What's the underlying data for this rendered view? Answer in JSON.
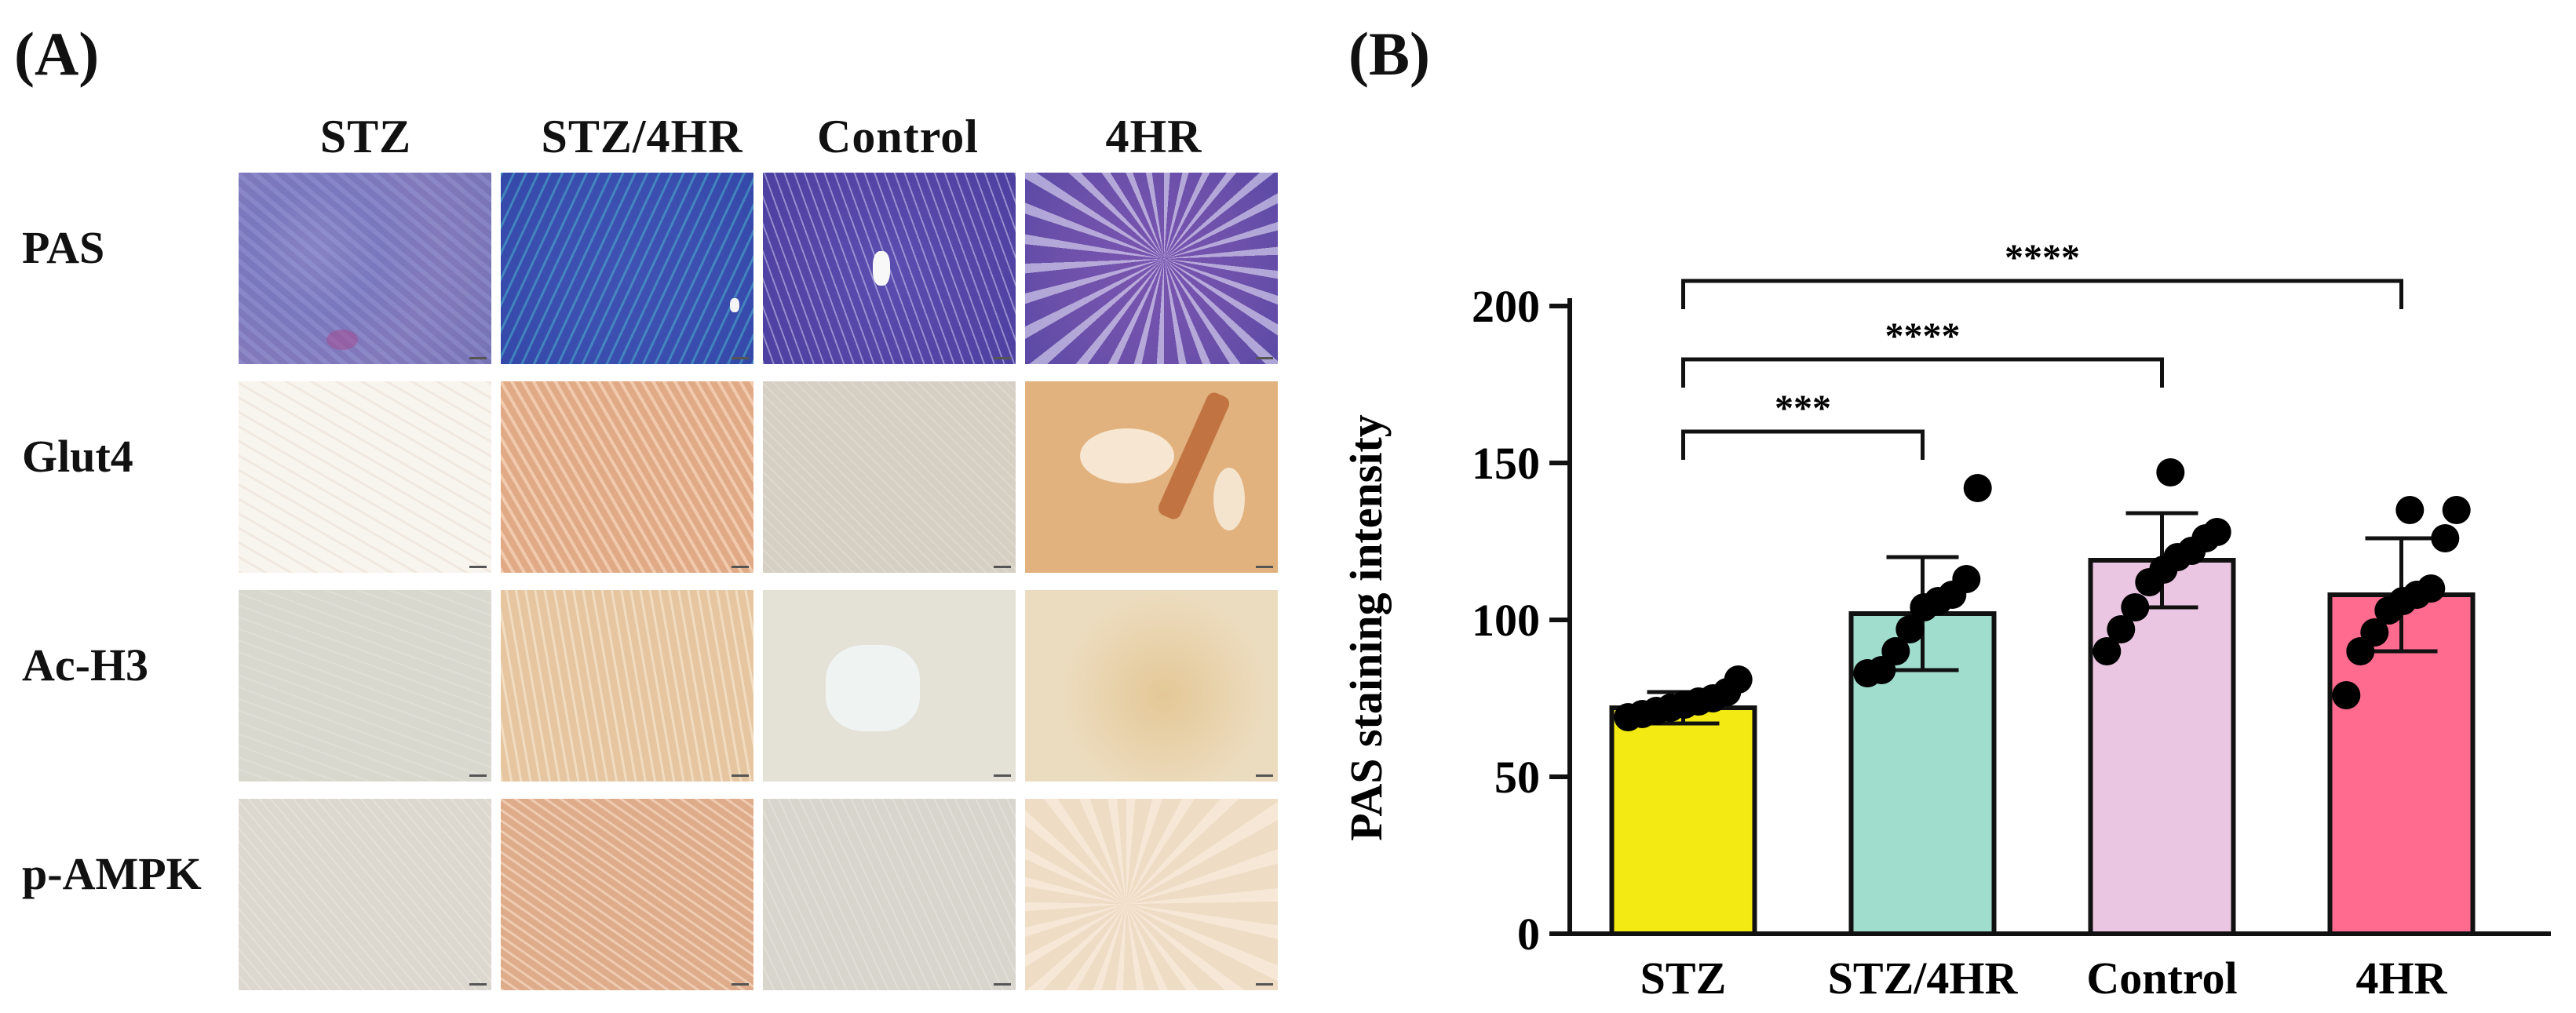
{
  "panel_a": {
    "label": "(A)",
    "columns": [
      "STZ",
      "STZ/4HR",
      "Control",
      "4HR"
    ],
    "rows": [
      "PAS",
      "Glut4",
      "Ac-H3",
      "p-AMPK"
    ]
  },
  "panel_b": {
    "label": "(B)"
  },
  "chart_data": {
    "type": "bar",
    "categories": [
      "STZ",
      "STZ/4HR",
      "Control",
      "4HR"
    ],
    "values": [
      72,
      102,
      119,
      108
    ],
    "error_sd": [
      5,
      18,
      15,
      18
    ],
    "colors": [
      "#f3ea14",
      "#a1ddcd",
      "#ebc6e2",
      "#ff6b8e"
    ],
    "points": [
      [
        69,
        70,
        71,
        72,
        73,
        74,
        75,
        77,
        81
      ],
      [
        83,
        84,
        90,
        97,
        104,
        106,
        108,
        113,
        142
      ],
      [
        90,
        97,
        104,
        112,
        116,
        120,
        122,
        126,
        128,
        147
      ],
      [
        76,
        90,
        96,
        103,
        106,
        108,
        110,
        126,
        135,
        135
      ]
    ],
    "ylabel": "PAS staining intensity",
    "xlabel": "",
    "title": "",
    "ylim": [
      0,
      200
    ],
    "yticks": [
      0,
      50,
      100,
      150,
      200
    ],
    "significance": [
      {
        "from": "STZ",
        "to": "STZ/4HR",
        "label": "***"
      },
      {
        "from": "STZ",
        "to": "Control",
        "label": "****"
      },
      {
        "from": "STZ",
        "to": "4HR",
        "label": "****"
      }
    ]
  }
}
